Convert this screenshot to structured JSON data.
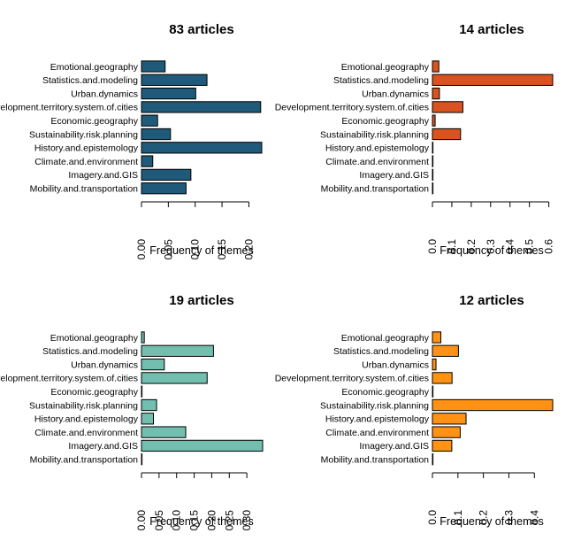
{
  "chart_data": [
    {
      "type": "bar",
      "orientation": "horizontal",
      "title": "83 articles",
      "xlabel": "Frequency of themes",
      "color": "#1f5a7a",
      "categories": [
        "Emotional.geography",
        "Statistics.and.modeling",
        "Urban.dynamics",
        "Development.territory.system.of.cities",
        "Economic.geography",
        "Sustainability.risk.planning",
        "History.and.epistemology",
        "Climate.and.environment",
        "Imagery.and.GIS",
        "Mobility.and.transportation"
      ],
      "values": [
        0.044,
        0.122,
        0.101,
        0.222,
        0.03,
        0.054,
        0.224,
        0.021,
        0.092,
        0.083
      ],
      "xlim": [
        0,
        0.224
      ],
      "ticks": [
        0.0,
        0.05,
        0.1,
        0.15,
        0.2
      ],
      "tick_labels": [
        "0.00",
        "0.05",
        "0.10",
        "0.15",
        "0.20"
      ]
    },
    {
      "type": "bar",
      "orientation": "horizontal",
      "title": "14 articles",
      "xlabel": "Frequency of themes",
      "color": "#d95320",
      "categories": [
        "Emotional.geography",
        "Statistics.and.modeling",
        "Urban.dynamics",
        "Development.territory.system.of.cities",
        "Economic.geography",
        "Sustainability.risk.planning",
        "History.and.epistemology",
        "Climate.and.environment",
        "Imagery.and.GIS",
        "Mobility.and.transportation"
      ],
      "values": [
        0.033,
        0.62,
        0.036,
        0.157,
        0.014,
        0.145,
        0.002,
        0.002,
        0.002,
        0.002
      ],
      "xlim": [
        0,
        0.62
      ],
      "ticks": [
        0.0,
        0.1,
        0.2,
        0.3,
        0.4,
        0.5,
        0.6
      ],
      "tick_labels": [
        "0.0",
        "0.1",
        "0.2",
        "0.3",
        "0.4",
        "0.5",
        "0.6"
      ]
    },
    {
      "type": "bar",
      "orientation": "horizontal",
      "title": "19 articles",
      "xlabel": "Frequency of themes",
      "color": "#72bfb0",
      "categories": [
        "Emotional.geography",
        "Statistics.and.modeling",
        "Urban.dynamics",
        "Development.territory.system.of.cities",
        "Economic.geography",
        "Sustainability.risk.planning",
        "History.and.epistemology",
        "Climate.and.environment",
        "Imagery.and.GIS",
        "Mobility.and.transportation"
      ],
      "values": [
        0.008,
        0.205,
        0.065,
        0.187,
        0.001,
        0.043,
        0.034,
        0.126,
        0.345,
        0.001
      ],
      "xlim": [
        0,
        0.345
      ],
      "ticks": [
        0.0,
        0.05,
        0.1,
        0.15,
        0.2,
        0.25,
        0.3
      ],
      "tick_labels": [
        "0.00",
        "0.05",
        "0.10",
        "0.15",
        "0.20",
        "0.25",
        "0.30"
      ]
    },
    {
      "type": "bar",
      "orientation": "horizontal",
      "title": "12 articles",
      "xlabel": "Frequency of themes",
      "color": "#ff9214",
      "categories": [
        "Emotional.geography",
        "Statistics.and.modeling",
        "Urban.dynamics",
        "Development.territory.system.of.cities",
        "Economic.geography",
        "Sustainability.risk.planning",
        "History.and.epistemology",
        "Climate.and.environment",
        "Imagery.and.GIS",
        "Mobility.and.transportation"
      ],
      "values": [
        0.033,
        0.102,
        0.014,
        0.077,
        0.002,
        0.472,
        0.132,
        0.109,
        0.076,
        0.002
      ],
      "xlim": [
        0,
        0.472
      ],
      "ticks": [
        0.0,
        0.1,
        0.2,
        0.3,
        0.4
      ],
      "tick_labels": [
        "0.0",
        "0.1",
        "0.2",
        "0.3",
        "0.4"
      ]
    }
  ]
}
